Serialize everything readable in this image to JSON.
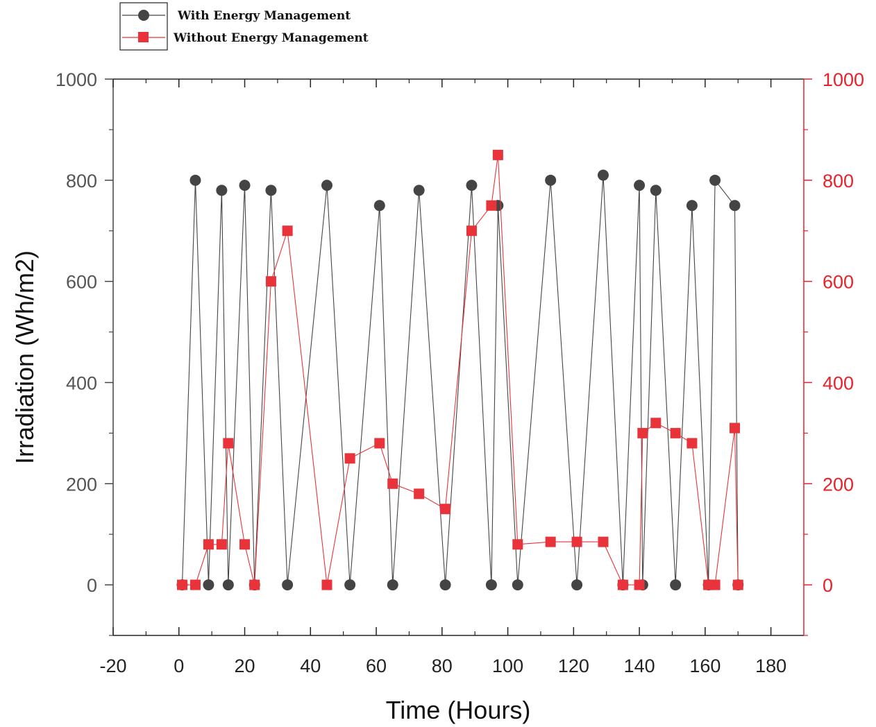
{
  "chart_data": {
    "type": "line",
    "title": "",
    "xlabel": "Time (Hours)",
    "ylabel": "Irradiation (Wh/m2)",
    "xlim": [
      -20,
      190
    ],
    "ylim": [
      -100,
      1000
    ],
    "y2lim": [
      -100,
      1000
    ],
    "x_ticks": [
      -20,
      0,
      20,
      40,
      60,
      80,
      100,
      120,
      140,
      160,
      180
    ],
    "y_ticks": [
      0,
      200,
      400,
      600,
      800,
      1000
    ],
    "y2_ticks": [
      0,
      200,
      400,
      600,
      800,
      1000
    ],
    "legend_position": "top-left-outside",
    "grid": false,
    "series": [
      {
        "name": "With Energy Management",
        "color": "#444444",
        "marker": "circle",
        "axis": "left",
        "points": [
          [
            1,
            0
          ],
          [
            5,
            800
          ],
          [
            9,
            0
          ],
          [
            13,
            780
          ],
          [
            15,
            0
          ],
          [
            20,
            790
          ],
          [
            23,
            0
          ],
          [
            28,
            780
          ],
          [
            33,
            0
          ],
          [
            45,
            790
          ],
          [
            52,
            0
          ],
          [
            61,
            750
          ],
          [
            65,
            0
          ],
          [
            73,
            780
          ],
          [
            81,
            0
          ],
          [
            89,
            790
          ],
          [
            95,
            0
          ],
          [
            97,
            750
          ],
          [
            103,
            0
          ],
          [
            113,
            800
          ],
          [
            121,
            0
          ],
          [
            129,
            810
          ],
          [
            135,
            0
          ],
          [
            140,
            790
          ],
          [
            141,
            0
          ],
          [
            145,
            780
          ],
          [
            151,
            0
          ],
          [
            156,
            750
          ],
          [
            161,
            0
          ],
          [
            163,
            800
          ],
          [
            169,
            750
          ],
          [
            170,
            0
          ]
        ]
      },
      {
        "name": "Without Energy Management",
        "color": "#e8333a",
        "marker": "square",
        "axis": "right",
        "points": [
          [
            1,
            0
          ],
          [
            5,
            0
          ],
          [
            9,
            80
          ],
          [
            13,
            80
          ],
          [
            15,
            280
          ],
          [
            20,
            80
          ],
          [
            23,
            0
          ],
          [
            28,
            600
          ],
          [
            33,
            700
          ],
          [
            45,
            0
          ],
          [
            52,
            250
          ],
          [
            61,
            280
          ],
          [
            65,
            200
          ],
          [
            73,
            180
          ],
          [
            81,
            150
          ],
          [
            89,
            700
          ],
          [
            95,
            750
          ],
          [
            97,
            850
          ],
          [
            103,
            80
          ],
          [
            113,
            85
          ],
          [
            121,
            85
          ],
          [
            129,
            85
          ],
          [
            135,
            0
          ],
          [
            140,
            0
          ],
          [
            141,
            300
          ],
          [
            145,
            320
          ],
          [
            151,
            300
          ],
          [
            156,
            280
          ],
          [
            161,
            0
          ],
          [
            163,
            0
          ],
          [
            169,
            310
          ],
          [
            170,
            0
          ]
        ]
      }
    ]
  }
}
